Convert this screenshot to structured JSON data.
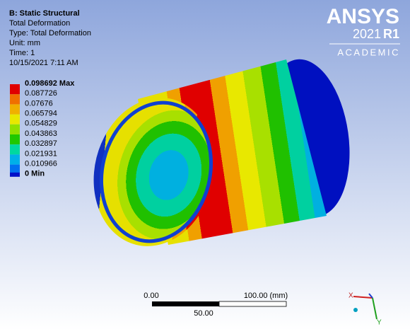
{
  "header": {
    "title": "B: Static Structural",
    "lines": [
      "Total Deformation",
      "Type: Total Deformation",
      "Unit: mm",
      "Time: 1",
      "10/15/2021 7:11 AM"
    ]
  },
  "legend": [
    {
      "label": "0.098692 Max",
      "color": "#e00000"
    },
    {
      "label": "0.087726",
      "color": "#f07000"
    },
    {
      "label": "0.07676",
      "color": "#f0b000"
    },
    {
      "label": "0.065794",
      "color": "#e8e800"
    },
    {
      "label": "0.054829",
      "color": "#90e000"
    },
    {
      "label": "0.043863",
      "color": "#20c800"
    },
    {
      "label": "0.032897",
      "color": "#00d8a0"
    },
    {
      "label": "0.021931",
      "color": "#00b0e8"
    },
    {
      "label": "0.010966",
      "color": "#0070f0"
    },
    {
      "label": "0 Min",
      "color": "#0010c8"
    }
  ],
  "logo": {
    "brand": "ANSYS",
    "year": "2021",
    "release": "R1",
    "edition": "ACADEMIC"
  },
  "scale_bar": {
    "left": "0.00",
    "right": "100.00 (mm)",
    "middle": "50.00"
  },
  "triad": {
    "x": "X",
    "y": "Y"
  }
}
